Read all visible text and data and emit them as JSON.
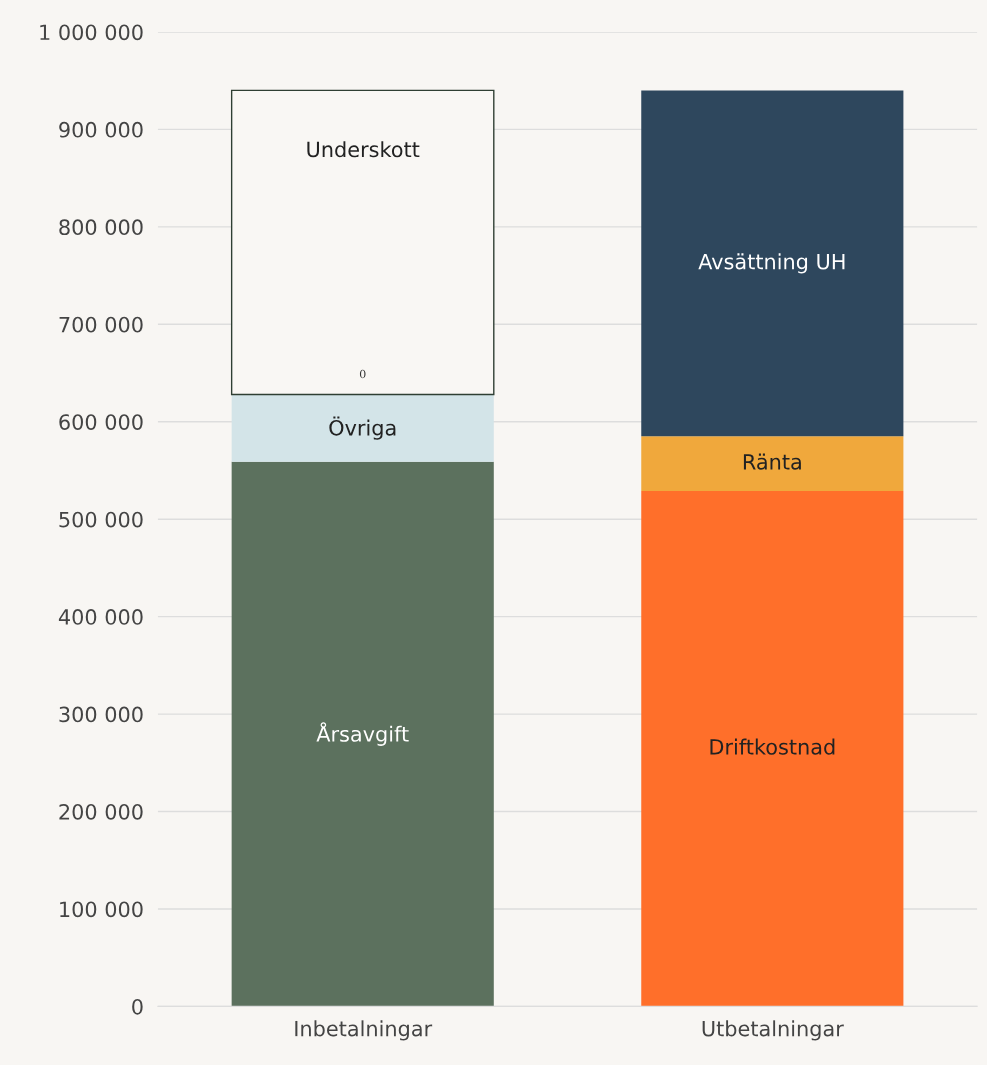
{
  "chart_data": {
    "type": "bar",
    "stacked": true,
    "categories": [
      "Inbetalningar",
      "Utbetalningar"
    ],
    "series": [
      {
        "name": "Årsavgift",
        "color": "#5c715e",
        "values": [
          559000,
          null
        ]
      },
      {
        "name": "Driftkostnad",
        "color": "#ff6f2a",
        "values": [
          null,
          529000
        ]
      },
      {
        "name": "Övriga",
        "color": "#d3e4e8",
        "values": [
          69000,
          null
        ]
      },
      {
        "name": "Ränta",
        "color": "#f0a83c",
        "values": [
          null,
          56000
        ]
      },
      {
        "name": "Underskott",
        "color": "#f9f7f4",
        "values": [
          312000,
          null
        ]
      },
      {
        "name": "Avsättning UH",
        "color": "#2e475d",
        "values": [
          null,
          355000
        ]
      }
    ],
    "annotations": [
      "0"
    ],
    "ylim": [
      0,
      1000000
    ],
    "yticks": [
      {
        "value": 0,
        "label": "0"
      },
      {
        "value": 100000,
        "label": "100 000"
      },
      {
        "value": 200000,
        "label": "200 000"
      },
      {
        "value": 300000,
        "label": "300 000"
      },
      {
        "value": 400000,
        "label": "400 000"
      },
      {
        "value": 500000,
        "label": "500 000"
      },
      {
        "value": 600000,
        "label": "600 000"
      },
      {
        "value": 700000,
        "label": "700 000"
      },
      {
        "value": 800000,
        "label": "800 000"
      },
      {
        "value": 900000,
        "label": "900 000"
      },
      {
        "value": 1000000,
        "label": "1 000 000"
      }
    ],
    "grid": "y",
    "legend": false
  }
}
